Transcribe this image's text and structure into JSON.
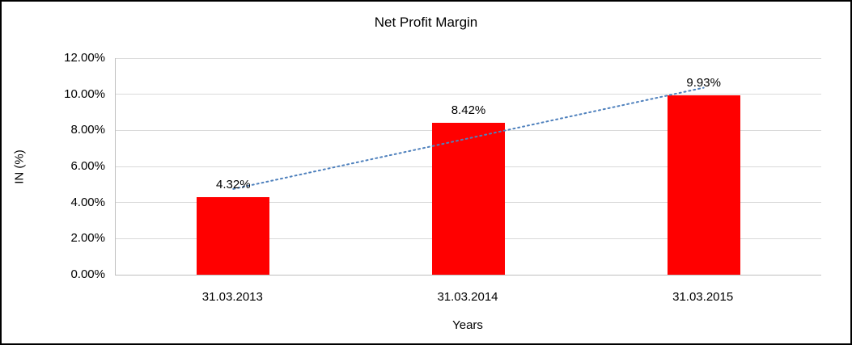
{
  "chart_data": {
    "type": "bar",
    "title": "Net Profit Margin",
    "xlabel": "Years",
    "ylabel": "IN (%)",
    "categories": [
      "31.03.2013",
      "31.03.2014",
      "31.03.2015"
    ],
    "values": [
      4.32,
      8.42,
      9.93
    ],
    "data_labels": [
      "4.32%",
      "8.42%",
      "9.93%"
    ],
    "ylim": [
      0,
      12
    ],
    "ytick_values": [
      0,
      2,
      4,
      6,
      8,
      10,
      12
    ],
    "ytick_labels": [
      "0.00%",
      "2.00%",
      "4.00%",
      "6.00%",
      "8.00%",
      "10.00%",
      "12.00%"
    ],
    "grid": true,
    "legend": "none",
    "bar_color": "#ff0000",
    "trendline": {
      "type": "linear",
      "style": "dotted",
      "color": "#4f81bd"
    }
  }
}
